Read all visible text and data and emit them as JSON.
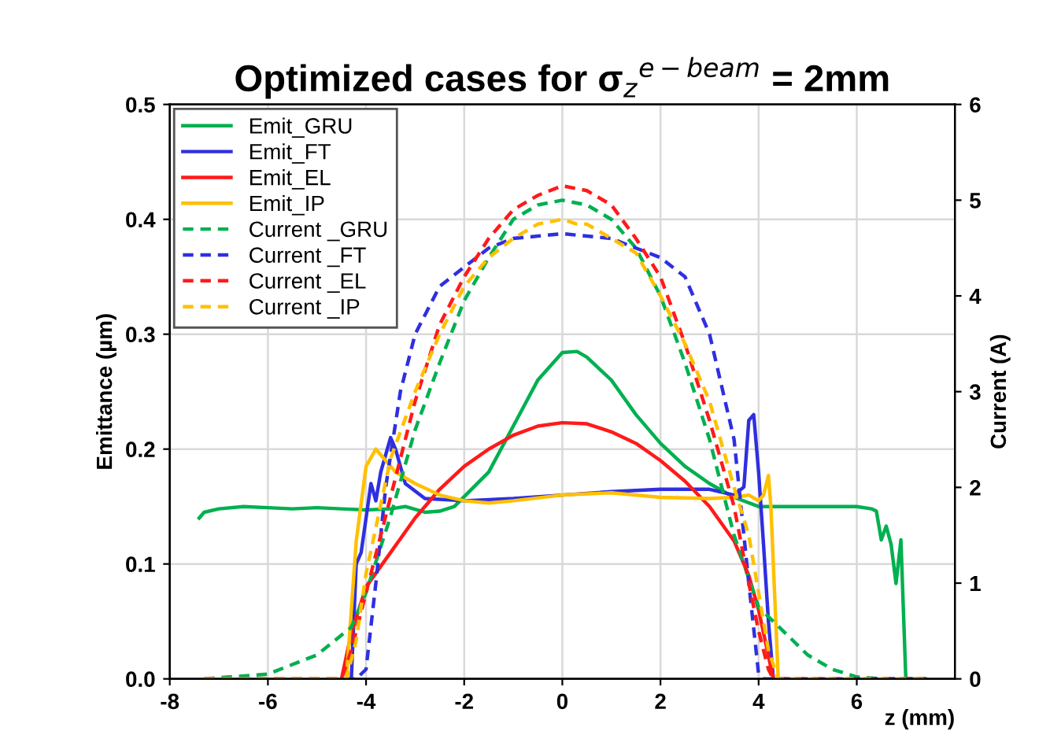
{
  "chart_data": {
    "type": "line",
    "title": "Optimized cases for σ$_{z}$$^{e−beam}$ = 2mm",
    "ylabel": "Emittance (µm)",
    "y2label": "Current (A)",
    "xlabel": "z (mm)",
    "xlim": [
      -8,
      8
    ],
    "xticks": [
      -8,
      -6,
      -4,
      -2,
      0,
      2,
      4,
      6
    ],
    "ylim": [
      0,
      0.5
    ],
    "yticks": [
      {
        "value": 0,
        "label": "0.0"
      },
      0.1,
      0.2,
      0.3,
      0.4,
      0.5
    ],
    "y2lim": [
      0,
      6
    ],
    "y2ticks": [
      0,
      1,
      2,
      3,
      4,
      5,
      6
    ],
    "grid": true,
    "legend": "top left",
    "marker": "none",
    "series": [
      {
        "name": "Emit_GRU",
        "color": "#00b050",
        "line_style": "solid",
        "x": [
          -7.4,
          -7.3,
          -7,
          -6.5,
          -6,
          -5.5,
          -5,
          -4.5,
          -4,
          -3.5,
          -3.2,
          -2.8,
          -2.5,
          -2.2,
          -1.5,
          -1,
          -0.5,
          0,
          0.3,
          0.5,
          1,
          1.5,
          2,
          2.5,
          3,
          3.5,
          4,
          4.5,
          5,
          5.5,
          6,
          6.3,
          6.4,
          6.5,
          6.6,
          6.7,
          6.8,
          6.9,
          6.95,
          7.0,
          7.4
        ],
        "values": [
          0.14,
          0.145,
          0.148,
          0.15,
          0.149,
          0.148,
          0.149,
          0.148,
          0.147,
          0.148,
          0.15,
          0.145,
          0.146,
          0.15,
          0.18,
          0.22,
          0.26,
          0.284,
          0.285,
          0.28,
          0.26,
          0.23,
          0.205,
          0.185,
          0.17,
          0.158,
          0.15,
          0.15,
          0.15,
          0.15,
          0.15,
          0.148,
          0.146,
          0.121,
          0.133,
          0.117,
          0.083,
          0.121,
          0.06,
          0,
          0
        ]
      },
      {
        "name": "Emit_FT",
        "color": "#2f2fe0",
        "line_style": "solid",
        "x": [
          -4.3,
          -4.2,
          -4.1,
          -4.0,
          -3.9,
          -3.8,
          -3.7,
          -3.5,
          -3.4,
          -3.2,
          -2.8,
          -2,
          -1,
          0,
          1,
          2,
          3,
          3.5,
          3.7,
          3.8,
          3.9,
          4.0,
          4.1,
          4.2,
          4.3
        ],
        "values": [
          0,
          0.1,
          0.11,
          0.14,
          0.17,
          0.155,
          0.18,
          0.21,
          0.2,
          0.17,
          0.157,
          0.155,
          0.157,
          0.16,
          0.163,
          0.165,
          0.165,
          0.16,
          0.167,
          0.225,
          0.23,
          0.18,
          0.117,
          0.05,
          0
        ]
      },
      {
        "name": "Emit_EL",
        "color": "#ff1a1a",
        "line_style": "solid",
        "x": [
          -4.5,
          -4.3,
          -4.0,
          -3.5,
          -3,
          -2.5,
          -2,
          -1.5,
          -1,
          -0.5,
          0,
          0.5,
          1,
          1.5,
          2,
          2.5,
          3,
          3.5,
          3.8,
          4.0,
          4.2,
          4.3
        ],
        "values": [
          0,
          0.04,
          0.08,
          0.11,
          0.14,
          0.165,
          0.185,
          0.2,
          0.212,
          0.22,
          0.223,
          0.222,
          0.215,
          0.205,
          0.19,
          0.172,
          0.15,
          0.12,
          0.09,
          0.06,
          0.02,
          0
        ]
      },
      {
        "name": "Emit_IP",
        "color": "#ffc000",
        "line_style": "solid",
        "x": [
          -4.4,
          -4.2,
          -4.0,
          -3.8,
          -3.6,
          -3.4,
          -3.0,
          -2.5,
          -2,
          -1.5,
          -1,
          0,
          1,
          2,
          3,
          3.5,
          3.8,
          4.0,
          4.1,
          4.2,
          4.25,
          4.35,
          4.4
        ],
        "values": [
          0,
          0.12,
          0.185,
          0.2,
          0.19,
          0.18,
          0.17,
          0.16,
          0.155,
          0.153,
          0.155,
          0.16,
          0.162,
          0.158,
          0.157,
          0.158,
          0.16,
          0.155,
          0.16,
          0.177,
          0.15,
          0.05,
          0
        ]
      },
      {
        "name": "Current _GRU",
        "color": "#00b050",
        "line_style": "dashed",
        "axis": "y2",
        "x": [
          -7.3,
          -6,
          -5,
          -4.3,
          -4,
          -3.5,
          -3,
          -2.5,
          -2,
          -1.5,
          -1,
          -0.5,
          0,
          0.5,
          1,
          1.5,
          2,
          2.5,
          3,
          3.5,
          4,
          4.5,
          5,
          5.5,
          6,
          6.5,
          7.4
        ],
        "values": [
          0,
          0.05,
          0.25,
          0.54,
          0.9,
          1.7,
          2.6,
          3.3,
          3.95,
          4.4,
          4.8,
          4.95,
          5.0,
          4.95,
          4.8,
          4.5,
          4.0,
          3.3,
          2.5,
          1.5,
          0.75,
          0.5,
          0.25,
          0.1,
          0.02,
          0,
          0
        ]
      },
      {
        "name": "Current _FT",
        "color": "#2f2fe0",
        "line_style": "dashed",
        "axis": "y2",
        "x": [
          -7.3,
          -4.2,
          -4.0,
          -3.8,
          -3.6,
          -3.3,
          -3,
          -2.5,
          -2,
          -1.5,
          -1,
          0,
          1,
          1.5,
          2,
          2.5,
          3,
          3.5,
          3.8,
          4.0,
          4.1,
          7.4
        ],
        "values": [
          0,
          0,
          0.1,
          1.0,
          2.0,
          3.0,
          3.6,
          4.1,
          4.3,
          4.5,
          4.6,
          4.65,
          4.6,
          4.5,
          4.4,
          4.2,
          3.6,
          2.5,
          1.0,
          0.05,
          0,
          0
        ]
      },
      {
        "name": "Current _EL",
        "color": "#ff1a1a",
        "line_style": "dashed",
        "axis": "y2",
        "x": [
          -7.3,
          -4.5,
          -4.3,
          -4,
          -3.5,
          -3,
          -2.5,
          -2,
          -1.5,
          -1,
          -0.5,
          0,
          0.5,
          1,
          1.5,
          2,
          2.5,
          3,
          3.5,
          3.8,
          4.0,
          4.2,
          4.3,
          7.4
        ],
        "values": [
          0,
          0,
          0.3,
          0.9,
          1.9,
          2.9,
          3.7,
          4.2,
          4.6,
          4.9,
          5.05,
          5.15,
          5.1,
          4.95,
          4.6,
          4.2,
          3.5,
          2.7,
          1.8,
          1.0,
          0.5,
          0.1,
          0,
          0
        ]
      },
      {
        "name": "Current _IP",
        "color": "#ffc000",
        "line_style": "dashed",
        "axis": "y2",
        "x": [
          -7.3,
          -4.4,
          -4.2,
          -4,
          -3.5,
          -3,
          -2.5,
          -2,
          -1.5,
          -1,
          -0.5,
          0,
          0.3,
          0.5,
          1,
          1.5,
          2,
          2.5,
          3,
          3.5,
          3.8,
          4,
          4.2,
          4.4,
          7.4
        ],
        "values": [
          0,
          0,
          0.4,
          1.1,
          2.3,
          3.0,
          3.6,
          4.1,
          4.4,
          4.6,
          4.75,
          4.8,
          4.75,
          4.75,
          4.6,
          4.45,
          4.0,
          3.5,
          2.9,
          2.0,
          1.5,
          0.9,
          0.3,
          0,
          0
        ]
      }
    ]
  }
}
